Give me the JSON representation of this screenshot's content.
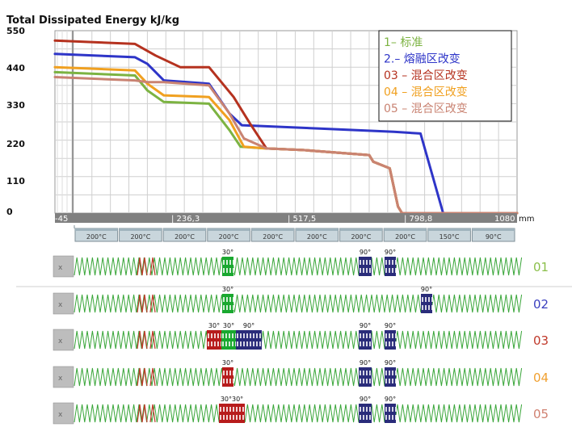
{
  "chart_data": {
    "type": "line",
    "title": "Total Dissipated Energy kJ/kg",
    "x_unit": "mm",
    "xlim": [
      -45,
      1080
    ],
    "ylim": [
      0,
      550
    ],
    "y_ticks": [
      "550",
      "440",
      "330",
      "220",
      "110",
      "0"
    ],
    "x_ticks": [
      "-45",
      "| 236,3",
      "| 517,5",
      "| 798,8",
      "1080"
    ],
    "series": [
      {
        "name": "1– 标准",
        "color": "#7cb342",
        "x": [
          -45,
          150,
          180,
          220,
          330,
          380,
          407,
          470,
          560,
          720,
          730,
          770,
          790,
          800,
          1080
        ],
        "y": [
          425,
          415,
          370,
          335,
          330,
          250,
          200,
          195,
          190,
          175,
          155,
          135,
          20,
          0,
          0
        ]
      },
      {
        "name": "2.– 熔融区改变",
        "color": "#2e35c8",
        "x": [
          -45,
          150,
          180,
          220,
          330,
          380,
          410,
          600,
          780,
          845,
          900,
          1080
        ],
        "y": [
          480,
          470,
          450,
          400,
          390,
          300,
          265,
          255,
          245,
          240,
          0,
          0
        ]
      },
      {
        "name": "03 – 混合区改变",
        "color": "#b5321f",
        "x": [
          -45,
          150,
          200,
          260,
          330,
          390,
          430,
          470,
          560,
          720,
          730,
          770,
          790,
          800,
          1080
        ],
        "y": [
          520,
          510,
          475,
          440,
          440,
          350,
          270,
          195,
          190,
          175,
          155,
          135,
          20,
          0,
          0
        ]
      },
      {
        "name": "04 – 混合区改变",
        "color": "#f0a020",
        "x": [
          -45,
          150,
          180,
          220,
          330,
          380,
          415,
          470,
          560,
          720,
          730,
          770,
          790,
          800,
          1080
        ],
        "y": [
          440,
          430,
          390,
          355,
          350,
          280,
          200,
          195,
          190,
          175,
          155,
          135,
          20,
          0,
          0
        ]
      },
      {
        "name": "05 – 混合区改变",
        "color": "#c98372",
        "x": [
          -45,
          150,
          180,
          220,
          330,
          380,
          415,
          470,
          560,
          720,
          730,
          770,
          790,
          800,
          1080
        ],
        "y": [
          410,
          400,
          395,
          395,
          385,
          300,
          225,
          195,
          190,
          175,
          155,
          135,
          20,
          0,
          0
        ]
      }
    ],
    "temperature_zones": [
      "200°C",
      "200°C",
      "200°C",
      "200°C",
      "200°C",
      "200°C",
      "200°C",
      "200°C",
      "150°C",
      "90°C"
    ],
    "screw_rows": [
      {
        "label": "01",
        "color": "#8bbf4a",
        "blocks": [
          {
            "angle": "30°",
            "start": 209,
            "len": 14,
            "color": "#1aa830"
          },
          {
            "angle": "90°",
            "start": 378,
            "len": 16,
            "color": "#2a2c7a"
          },
          {
            "angle": "90°",
            "start": 410,
            "len": 14,
            "color": "#2a2c7a"
          }
        ]
      },
      {
        "label": "02",
        "color": "#3a3fbf",
        "blocks": [
          {
            "angle": "30°",
            "start": 209,
            "len": 14,
            "color": "#1aa830"
          },
          {
            "angle": "90°",
            "start": 455,
            "len": 14,
            "color": "#2a2c7a"
          }
        ]
      },
      {
        "label": "03",
        "color": "#c0392b",
        "blocks": [
          {
            "angle": "30°",
            "start": 190,
            "len": 18,
            "color": "#b71c1c"
          },
          {
            "angle": "30°",
            "start": 208,
            "len": 18,
            "color": "#1aa830"
          },
          {
            "angle": "90°",
            "start": 226,
            "len": 32,
            "color": "#2a2c7a"
          },
          {
            "angle": "90°",
            "start": 378,
            "len": 16,
            "color": "#2a2c7a"
          },
          {
            "angle": "90°",
            "start": 410,
            "len": 14,
            "color": "#2a2c7a"
          }
        ]
      },
      {
        "label": "04",
        "color": "#f0a030",
        "blocks": [
          {
            "angle": "30°",
            "start": 209,
            "len": 14,
            "color": "#b71c1c"
          },
          {
            "angle": "90°",
            "start": 378,
            "len": 16,
            "color": "#2a2c7a"
          },
          {
            "angle": "90°",
            "start": 410,
            "len": 14,
            "color": "#2a2c7a"
          }
        ]
      },
      {
        "label": "05",
        "color": "#d08070",
        "blocks": [
          {
            "angle": "30°30°",
            "start": 205,
            "len": 32,
            "color": "#b71c1c"
          },
          {
            "angle": "90°",
            "start": 378,
            "len": 16,
            "color": "#2a2c7a"
          },
          {
            "angle": "90°",
            "start": 410,
            "len": 14,
            "color": "#2a2c7a"
          }
        ]
      }
    ],
    "screw_label_glyph": "x",
    "legend_position": "top-right"
  }
}
